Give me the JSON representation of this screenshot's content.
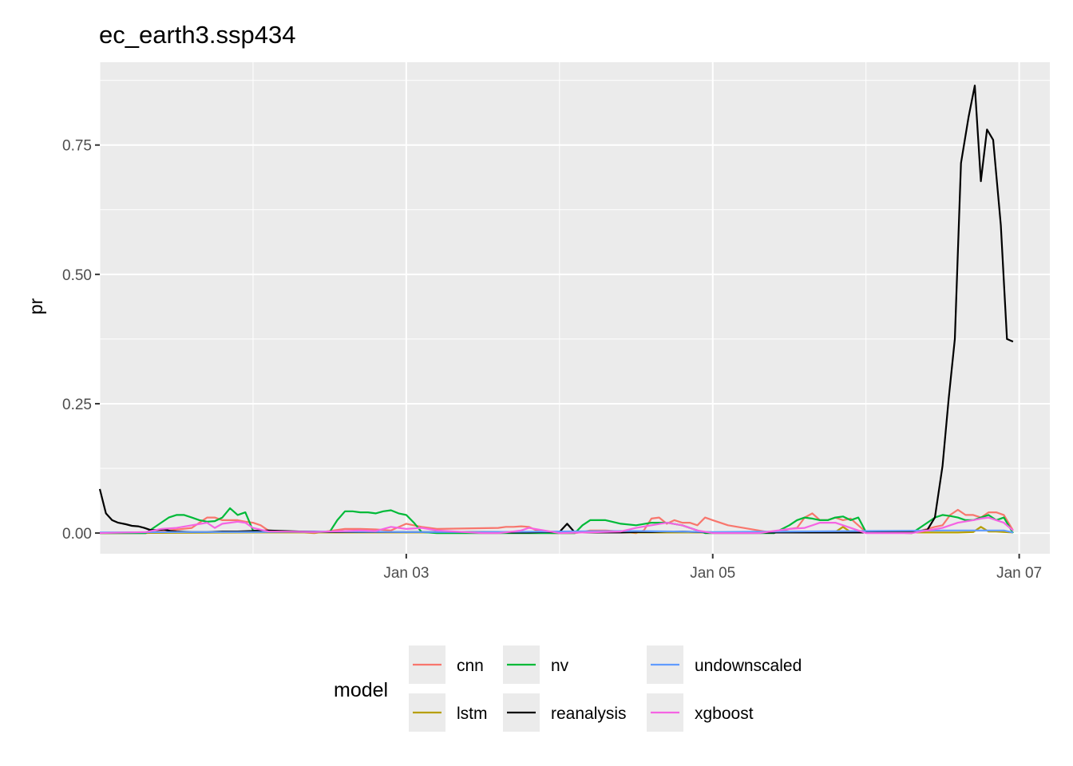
{
  "chart_data": {
    "type": "line",
    "title": "ec_earth3.ssp434",
    "xlabel": "",
    "ylabel": "pr",
    "x_tick_labels": [
      "Jan 03",
      "Jan 05",
      "Jan 07"
    ],
    "y_tick_labels": [
      "0.00",
      "0.25",
      "0.50",
      "0.75"
    ],
    "y_ticks": [
      0,
      0.25,
      0.5,
      0.75
    ],
    "xlim": [
      1.0,
      7.2
    ],
    "ylim": [
      -0.04,
      0.91
    ],
    "grid": true,
    "legend": {
      "title": "model",
      "position": "bottom",
      "entries": [
        "cnn",
        "lstm",
        "nv",
        "reanalysis",
        "undownscaled",
        "xgboost"
      ]
    },
    "series": [
      {
        "name": "reanalysis",
        "color": "#000000",
        "x": [
          1.0,
          1.04,
          1.08,
          1.12,
          1.17,
          1.21,
          1.25,
          1.29,
          1.33,
          1.38,
          1.42,
          1.46,
          1.5,
          1.6,
          1.7,
          1.8,
          1.9,
          2.0,
          2.1,
          2.2,
          2.3,
          2.4,
          2.5,
          2.6,
          2.7,
          2.8,
          2.9,
          3.0,
          3.1,
          3.2,
          3.3,
          3.4,
          3.5,
          3.6,
          3.7,
          3.8,
          3.9,
          4.0,
          4.05,
          4.1,
          4.15,
          4.2,
          4.3,
          4.4,
          4.5,
          4.6,
          4.7,
          4.8,
          4.9,
          5.0,
          5.1,
          5.2,
          5.3,
          5.4,
          5.5,
          5.6,
          5.7,
          5.8,
          5.9,
          6.0,
          6.1,
          6.2,
          6.3,
          6.35,
          6.4,
          6.45,
          6.5,
          6.54,
          6.58,
          6.62,
          6.67,
          6.71,
          6.75,
          6.79,
          6.83,
          6.88,
          6.92,
          6.96
        ],
        "y": [
          0.085,
          0.038,
          0.025,
          0.02,
          0.017,
          0.014,
          0.013,
          0.01,
          0.006,
          0.006,
          0.007,
          0.004,
          0.003,
          0.002,
          0.002,
          0.003,
          0.003,
          0.004,
          0.005,
          0.004,
          0.003,
          0.003,
          0.002,
          0.002,
          0.002,
          0.002,
          0.002,
          0.002,
          0.002,
          0.002,
          0.002,
          0.002,
          0.002,
          0.002,
          0.001,
          0.001,
          0.002,
          0.002,
          0.018,
          0.001,
          0.001,
          0.001,
          0.001,
          0.001,
          0.002,
          0.002,
          0.003,
          0.003,
          0.002,
          0.001,
          0.001,
          0.001,
          0.001,
          0.001,
          0.001,
          0.001,
          0.001,
          0.001,
          0.001,
          0.001,
          0.001,
          0.001,
          0.001,
          0.004,
          0.006,
          0.03,
          0.13,
          0.26,
          0.375,
          0.715,
          0.805,
          0.865,
          0.68,
          0.78,
          0.76,
          0.595,
          0.375,
          0.37
        ]
      },
      {
        "name": "nv",
        "color": "#00ba38",
        "x": [
          1.0,
          1.3,
          1.35,
          1.4,
          1.45,
          1.5,
          1.55,
          1.6,
          1.65,
          1.7,
          1.75,
          1.8,
          1.85,
          1.9,
          1.95,
          2.0,
          2.1,
          2.4,
          2.5,
          2.55,
          2.6,
          2.65,
          2.7,
          2.75,
          2.8,
          2.85,
          2.9,
          2.95,
          3.0,
          3.05,
          3.1,
          3.2,
          3.4,
          3.5,
          3.6,
          3.65,
          3.7,
          3.75,
          3.8,
          3.85,
          3.9,
          3.95,
          4.0,
          4.05,
          4.1,
          4.15,
          4.2,
          4.3,
          4.4,
          4.5,
          4.6,
          4.7,
          4.8,
          4.85,
          4.9,
          4.95,
          5.0,
          5.1,
          5.3,
          5.4,
          5.5,
          5.55,
          5.6,
          5.65,
          5.7,
          5.75,
          5.8,
          5.85,
          5.9,
          5.95,
          6.0,
          6.3,
          6.4,
          6.45,
          6.5,
          6.55,
          6.6,
          6.65,
          6.7,
          6.75,
          6.8,
          6.85,
          6.9,
          6.96
        ],
        "y": [
          0.0,
          0.0,
          0.01,
          0.02,
          0.03,
          0.035,
          0.035,
          0.03,
          0.025,
          0.022,
          0.023,
          0.03,
          0.048,
          0.035,
          0.04,
          0.005,
          0.002,
          0.002,
          0.002,
          0.025,
          0.042,
          0.042,
          0.04,
          0.04,
          0.038,
          0.042,
          0.044,
          0.038,
          0.035,
          0.02,
          0.002,
          0.0,
          0.0,
          0.0,
          0.0,
          0.0,
          0.0,
          0.0,
          0.0,
          0.0,
          0.0,
          0.0,
          0.0,
          0.0,
          0.0,
          0.015,
          0.025,
          0.025,
          0.018,
          0.015,
          0.02,
          0.02,
          0.015,
          0.01,
          0.005,
          0.0,
          0.0,
          0.0,
          0.0,
          0.0,
          0.015,
          0.025,
          0.03,
          0.028,
          0.025,
          0.025,
          0.03,
          0.032,
          0.025,
          0.03,
          0.002,
          0.0,
          0.02,
          0.03,
          0.035,
          0.033,
          0.03,
          0.025,
          0.025,
          0.03,
          0.035,
          0.025,
          0.03,
          0.0
        ]
      },
      {
        "name": "cnn",
        "color": "#f8766d",
        "x": [
          1.0,
          1.3,
          1.6,
          1.7,
          1.75,
          1.8,
          1.85,
          1.9,
          1.95,
          2.0,
          2.05,
          2.1,
          2.4,
          2.6,
          2.7,
          2.8,
          2.9,
          3.0,
          3.1,
          3.2,
          3.6,
          3.65,
          3.7,
          3.75,
          3.8,
          3.85,
          3.9,
          3.95,
          4.0,
          4.05,
          4.1,
          4.15,
          4.2,
          4.3,
          4.4,
          4.5,
          4.55,
          4.6,
          4.65,
          4.7,
          4.75,
          4.8,
          4.85,
          4.9,
          4.95,
          5.0,
          5.1,
          5.4,
          5.5,
          5.55,
          5.6,
          5.65,
          5.7,
          5.75,
          5.8,
          5.85,
          5.9,
          6.0,
          6.3,
          6.45,
          6.5,
          6.55,
          6.6,
          6.65,
          6.7,
          6.75,
          6.8,
          6.85,
          6.9,
          6.96
        ],
        "y": [
          0.0,
          0.0,
          0.01,
          0.03,
          0.03,
          0.025,
          0.025,
          0.025,
          0.022,
          0.02,
          0.015,
          0.005,
          0.0,
          0.008,
          0.008,
          0.007,
          0.005,
          0.018,
          0.012,
          0.008,
          0.01,
          0.012,
          0.012,
          0.013,
          0.012,
          0.005,
          0.002,
          0.0,
          0.0,
          0.0,
          0.0,
          0.002,
          0.005,
          0.005,
          0.003,
          0.0,
          0.005,
          0.028,
          0.03,
          0.018,
          0.025,
          0.02,
          0.02,
          0.015,
          0.03,
          0.025,
          0.015,
          0.0,
          0.008,
          0.01,
          0.03,
          0.038,
          0.025,
          0.025,
          0.03,
          0.025,
          0.028,
          0.002,
          0.0,
          0.012,
          0.015,
          0.035,
          0.045,
          0.035,
          0.035,
          0.03,
          0.04,
          0.04,
          0.035,
          0.005
        ]
      },
      {
        "name": "xgboost",
        "color": "#f564e3",
        "x": [
          1.0,
          1.3,
          1.4,
          1.5,
          1.6,
          1.7,
          1.75,
          1.8,
          1.85,
          1.9,
          1.95,
          2.0,
          2.1,
          2.4,
          2.5,
          2.6,
          2.7,
          2.8,
          2.9,
          3.0,
          3.1,
          3.2,
          3.5,
          3.6,
          3.7,
          3.75,
          3.8,
          4.0,
          4.4,
          4.5,
          4.6,
          4.7,
          4.8,
          4.9,
          5.0,
          5.3,
          5.5,
          5.6,
          5.7,
          5.8,
          5.9,
          6.0,
          6.3,
          6.5,
          6.6,
          6.7,
          6.75,
          6.8,
          6.85,
          6.9,
          6.96
        ],
        "y": [
          0.0,
          0.002,
          0.008,
          0.01,
          0.015,
          0.02,
          0.01,
          0.018,
          0.02,
          0.022,
          0.02,
          0.01,
          0.003,
          0.002,
          0.003,
          0.004,
          0.005,
          0.004,
          0.012,
          0.008,
          0.01,
          0.005,
          0.0,
          0.0,
          0.003,
          0.005,
          0.01,
          0.0,
          0.003,
          0.01,
          0.015,
          0.02,
          0.015,
          0.005,
          0.0,
          0.0,
          0.008,
          0.01,
          0.02,
          0.02,
          0.01,
          0.0,
          0.0,
          0.01,
          0.02,
          0.025,
          0.028,
          0.03,
          0.025,
          0.02,
          0.005
        ]
      },
      {
        "name": "lstm",
        "color": "#b79f00",
        "x": [
          1.0,
          2.0,
          3.0,
          4.0,
          5.0,
          5.8,
          5.85,
          5.9,
          6.0,
          6.5,
          6.6,
          6.7,
          6.75,
          6.8,
          6.85,
          6.96
        ],
        "y": [
          0.0,
          0.001,
          0.001,
          0.001,
          0.001,
          0.002,
          0.012,
          0.002,
          0.001,
          0.001,
          0.001,
          0.002,
          0.012,
          0.003,
          0.003,
          0.001
        ]
      },
      {
        "name": "undownscaled",
        "color": "#619cff",
        "x": [
          1.0,
          1.5,
          2.0,
          2.5,
          3.0,
          3.5,
          4.0,
          4.5,
          5.0,
          5.5,
          6.0,
          6.5,
          6.9,
          6.96
        ],
        "y": [
          0.001,
          0.002,
          0.002,
          0.003,
          0.002,
          0.002,
          0.003,
          0.004,
          0.002,
          0.003,
          0.004,
          0.005,
          0.005,
          0.001
        ]
      }
    ]
  }
}
